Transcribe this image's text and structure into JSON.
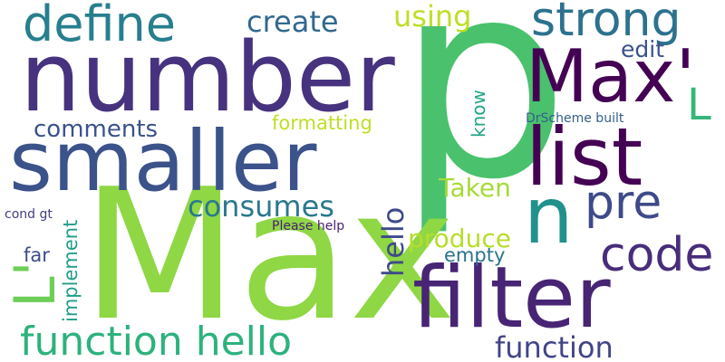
{
  "words": [
    {
      "text": "number",
      "color": "#46327e"
    },
    {
      "text": "p",
      "color": "#4ac16d"
    },
    {
      "text": "Max",
      "color": "#8fd744"
    },
    {
      "text": "smaller",
      "color": "#3b528b"
    },
    {
      "text": "filter",
      "color": "#482475"
    },
    {
      "text": "Max'",
      "color": "#440154"
    },
    {
      "text": "list",
      "color": "#440154"
    },
    {
      "text": "define",
      "color": "#277f8e"
    },
    {
      "text": "strong",
      "color": "#2c728e"
    },
    {
      "text": "n",
      "color": "#21918c"
    },
    {
      "text": "function hello",
      "color": "#2db27d"
    },
    {
      "text": "code",
      "color": "#472d7b"
    },
    {
      "text": "pre",
      "color": "#3e4a89"
    },
    {
      "text": "L'",
      "color": "#6ece58"
    },
    {
      "text": "create",
      "color": "#31688e"
    },
    {
      "text": "using",
      "color": "#bddf26"
    },
    {
      "text": "consumes",
      "color": "#2a788e"
    },
    {
      "text": "comments",
      "color": "#3b528b"
    },
    {
      "text": "function",
      "color": "#414487"
    },
    {
      "text": "hello",
      "color": "#3e4a89"
    },
    {
      "text": "L",
      "color": "#35b779"
    },
    {
      "text": "produce",
      "color": "#b5de2b"
    },
    {
      "text": "Taken",
      "color": "#a5db36"
    },
    {
      "text": "formatting",
      "color": "#bddf26"
    },
    {
      "text": "edit",
      "color": "#3b528b"
    },
    {
      "text": "know",
      "color": "#21a685"
    },
    {
      "text": "empty",
      "color": "#2c728e"
    },
    {
      "text": "implement",
      "color": "#1f9e89"
    },
    {
      "text": "far",
      "color": "#3e4a89"
    },
    {
      "text": "DrScheme built",
      "color": "#355f8d"
    },
    {
      "text": "cond gt",
      "color": "#433e85"
    },
    {
      "text": "Please help",
      "color": "#481f70"
    }
  ]
}
